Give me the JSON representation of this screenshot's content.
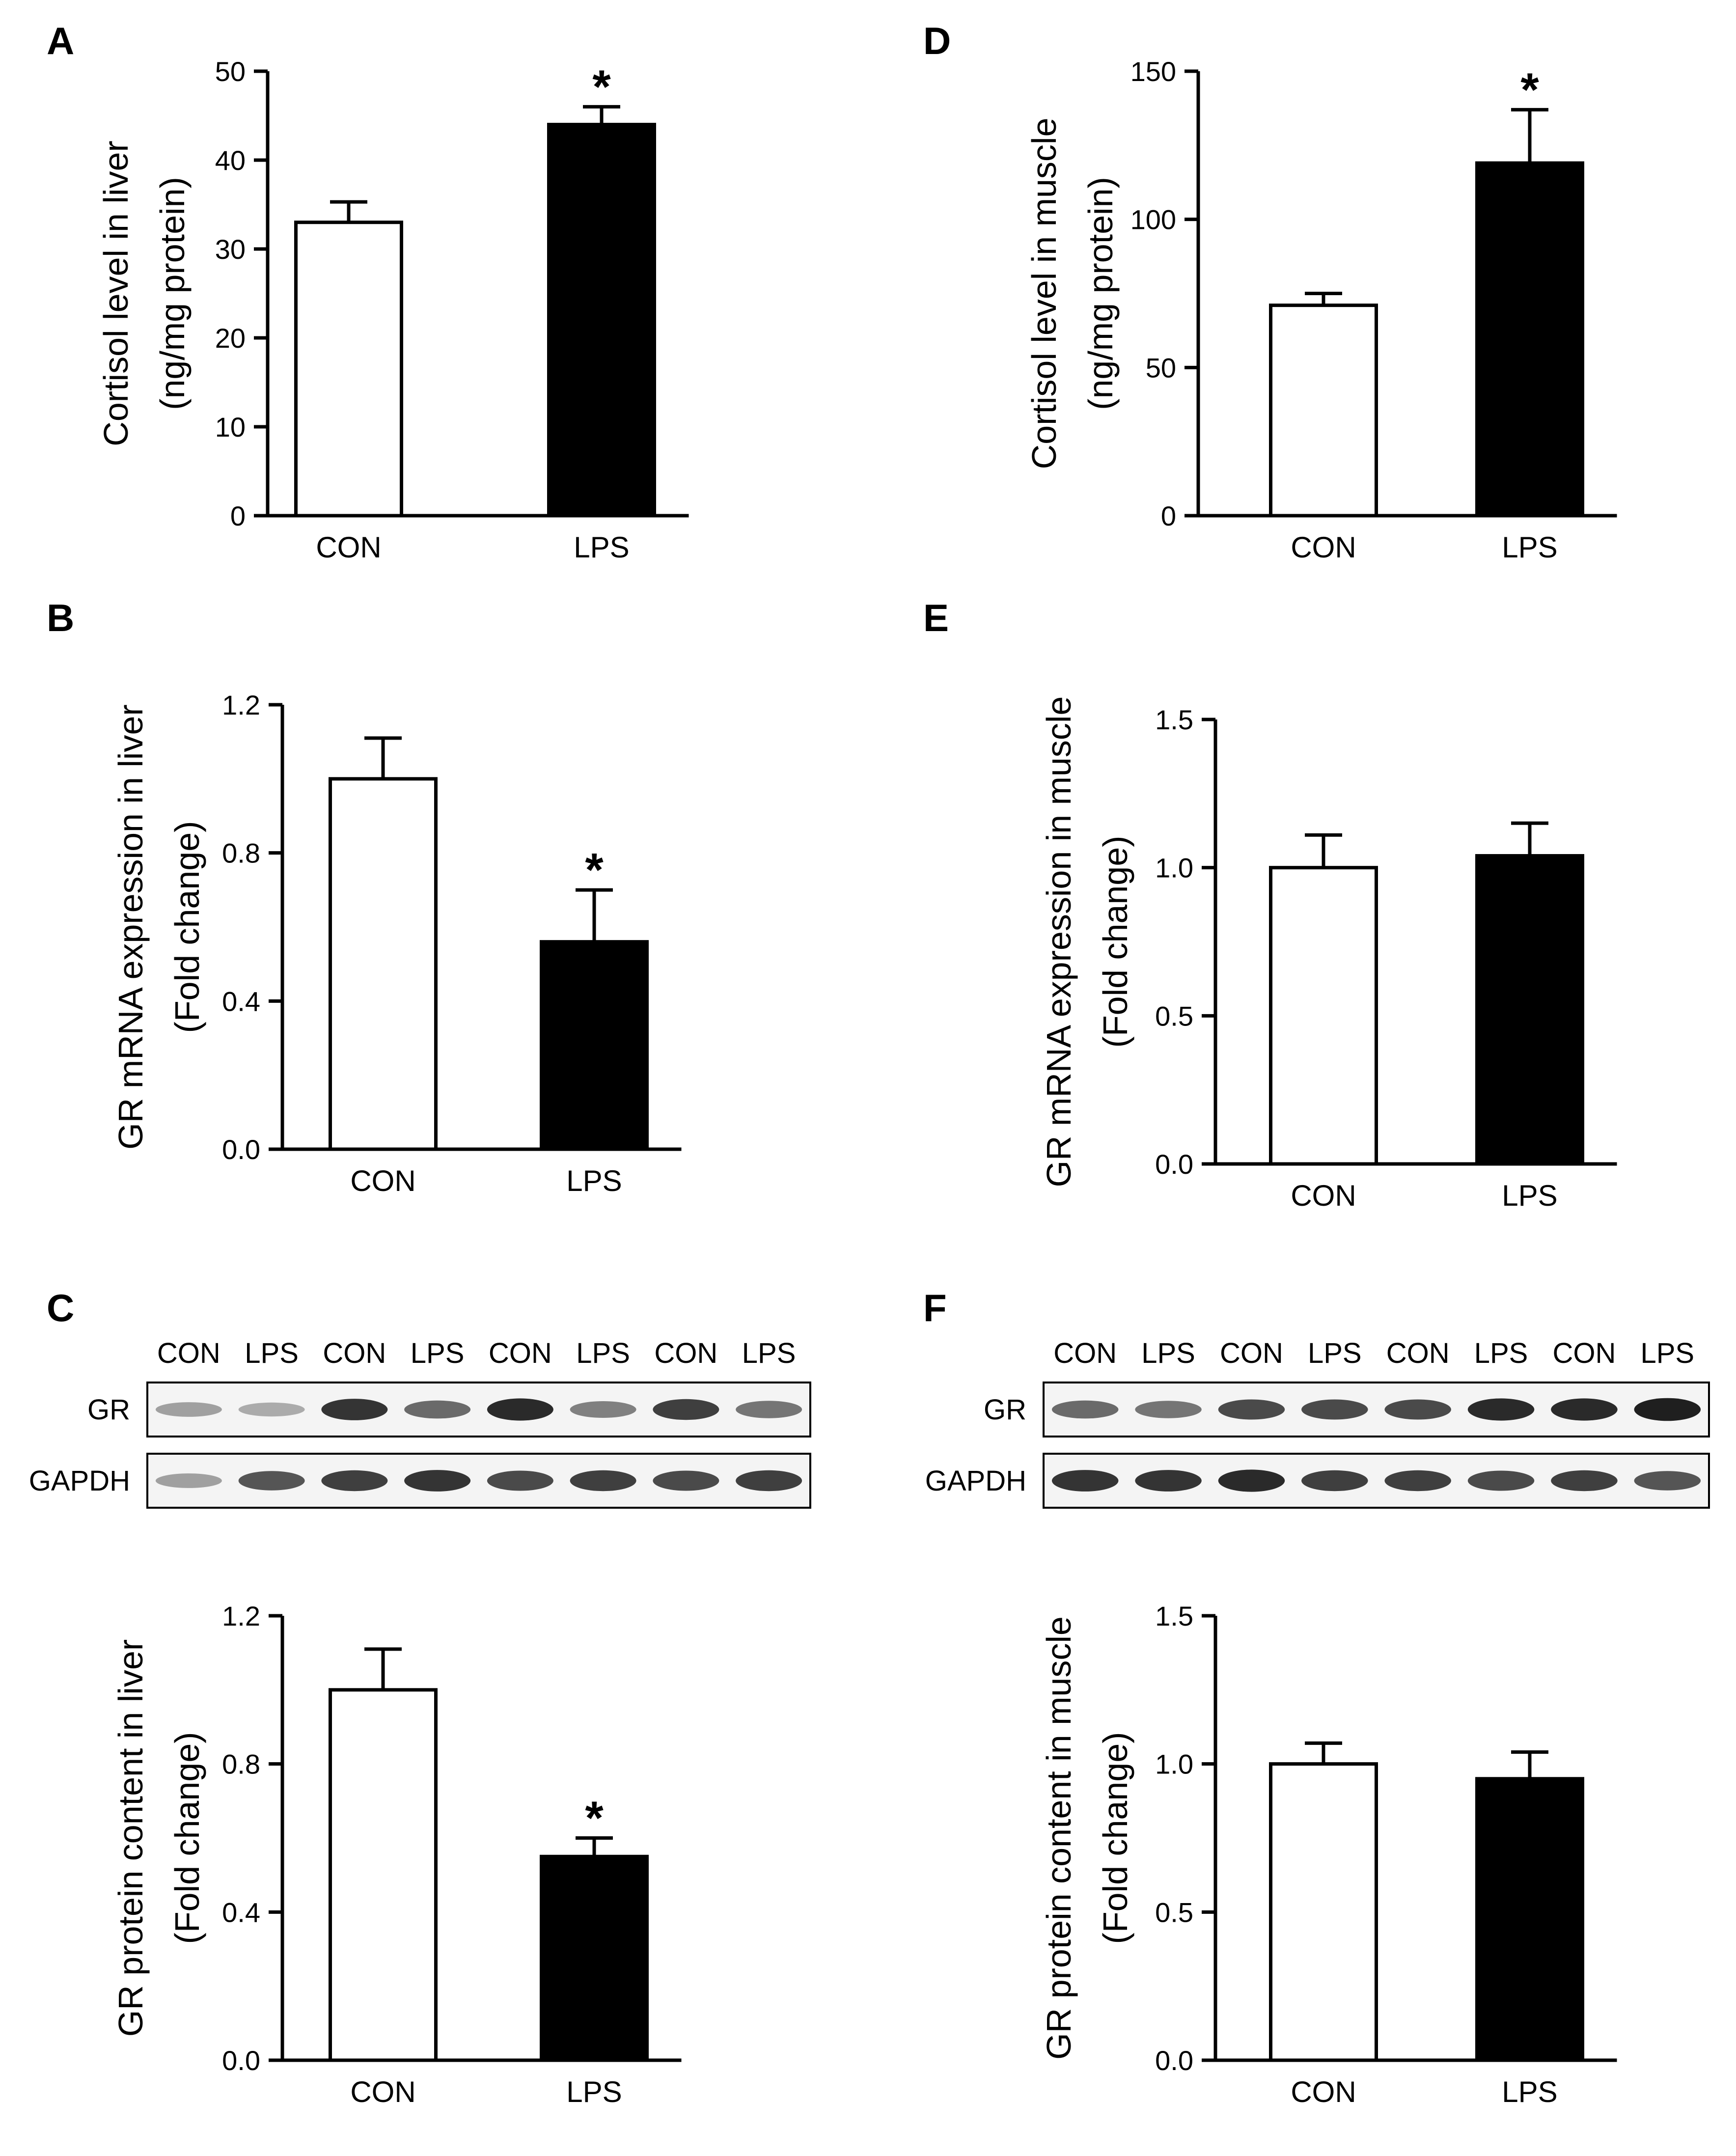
{
  "panels": {
    "A": "A",
    "B": "B",
    "C": "C",
    "D": "D",
    "E": "E",
    "F": "F"
  },
  "chart_data": [
    {
      "id": "A",
      "type": "bar",
      "categories": [
        "CON",
        "LPS"
      ],
      "values": [
        33,
        44
      ],
      "errors": [
        2.3,
        2.0
      ],
      "significant": [
        false,
        true
      ],
      "significance_marker": "*",
      "ylabel_lines": [
        "Cortisol level in liver",
        "(ng/mg protein)"
      ],
      "ylim": [
        0,
        50
      ],
      "yticks": [
        0,
        10,
        20,
        30,
        40,
        50
      ],
      "ytick_labels": [
        "0",
        "10",
        "20",
        "30",
        "40",
        "50"
      ]
    },
    {
      "id": "D",
      "type": "bar",
      "categories": [
        "CON",
        "LPS"
      ],
      "values": [
        71,
        119
      ],
      "errors": [
        4,
        18
      ],
      "significant": [
        false,
        true
      ],
      "significance_marker": "*",
      "ylabel_lines": [
        "Cortisol level in muscle",
        "(ng/mg protein)"
      ],
      "ylim": [
        0,
        150
      ],
      "yticks": [
        0,
        50,
        100,
        150
      ],
      "ytick_labels": [
        "0",
        "50",
        "100",
        "150"
      ]
    },
    {
      "id": "B",
      "type": "bar",
      "categories": [
        "CON",
        "LPS"
      ],
      "values": [
        1.0,
        0.56
      ],
      "errors": [
        0.11,
        0.14
      ],
      "significant": [
        false,
        true
      ],
      "significance_marker": "*",
      "ylabel_lines": [
        "GR mRNA expression in liver",
        "(Fold change)"
      ],
      "ylim": [
        0,
        1.2
      ],
      "yticks": [
        0,
        0.4,
        0.8,
        1.2
      ],
      "ytick_labels": [
        "0.0",
        "0.4",
        "0.8",
        "1.2"
      ]
    },
    {
      "id": "E",
      "type": "bar",
      "categories": [
        "CON",
        "LPS"
      ],
      "values": [
        1.0,
        1.04
      ],
      "errors": [
        0.11,
        0.11
      ],
      "significant": [
        false,
        false
      ],
      "significance_marker": "*",
      "ylabel_lines": [
        "GR mRNA expression in muscle",
        "(Fold change)"
      ],
      "ylim": [
        0,
        1.5
      ],
      "yticks": [
        0,
        0.5,
        1.0,
        1.5
      ],
      "ytick_labels": [
        "0.0",
        "0.5",
        "1.0",
        "1.5"
      ]
    },
    {
      "id": "C",
      "type": "bar",
      "categories": [
        "CON",
        "LPS"
      ],
      "values": [
        1.0,
        0.55
      ],
      "errors": [
        0.11,
        0.05
      ],
      "significant": [
        false,
        true
      ],
      "significance_marker": "*",
      "ylabel_lines": [
        "GR protein content in liver",
        "(Fold change)"
      ],
      "ylim": [
        0,
        1.2
      ],
      "yticks": [
        0,
        0.4,
        0.8,
        1.2
      ],
      "ytick_labels": [
        "0.0",
        "0.4",
        "0.8",
        "1.2"
      ]
    },
    {
      "id": "F",
      "type": "bar",
      "categories": [
        "CON",
        "LPS"
      ],
      "values": [
        1.0,
        0.95
      ],
      "errors": [
        0.07,
        0.09
      ],
      "significant": [
        false,
        false
      ],
      "significance_marker": "*",
      "ylabel_lines": [
        "GR protein content in muscle",
        "(Fold change)"
      ],
      "ylim": [
        0,
        1.5
      ],
      "yticks": [
        0,
        0.5,
        1.0,
        1.5
      ],
      "ytick_labels": [
        "0.0",
        "0.5",
        "1.0",
        "1.5"
      ]
    }
  ],
  "blots": [
    {
      "id": "C",
      "lanes": [
        "CON",
        "LPS",
        "CON",
        "LPS",
        "CON",
        "LPS",
        "CON",
        "LPS"
      ],
      "rows": [
        {
          "label": "GR",
          "intensities": [
            0.35,
            0.3,
            0.85,
            0.6,
            0.9,
            0.5,
            0.8,
            0.55
          ]
        },
        {
          "label": "GAPDH",
          "intensities": [
            0.35,
            0.7,
            0.8,
            0.85,
            0.75,
            0.8,
            0.75,
            0.8
          ]
        }
      ]
    },
    {
      "id": "F",
      "lanes": [
        "CON",
        "LPS",
        "CON",
        "LPS",
        "CON",
        "LPS",
        "CON",
        "LPS"
      ],
      "rows": [
        {
          "label": "GR",
          "intensities": [
            0.6,
            0.55,
            0.75,
            0.75,
            0.75,
            0.9,
            0.9,
            0.95
          ]
        },
        {
          "label": "GAPDH",
          "intensities": [
            0.85,
            0.85,
            0.9,
            0.8,
            0.8,
            0.75,
            0.8,
            0.7
          ]
        }
      ]
    }
  ]
}
